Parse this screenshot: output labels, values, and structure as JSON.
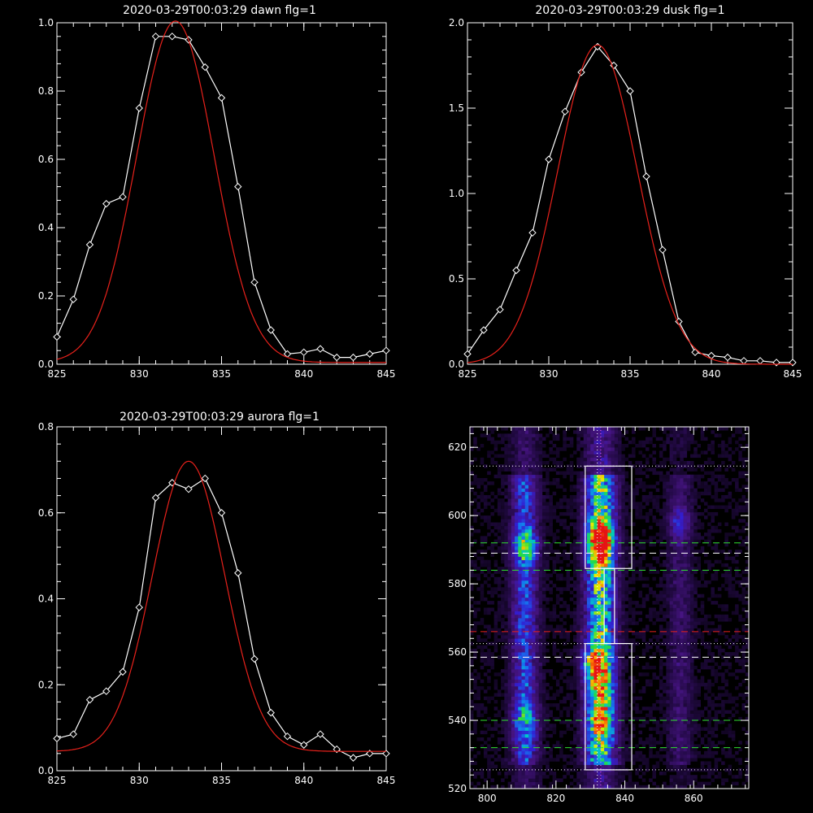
{
  "chart_data": [
    {
      "type": "line",
      "title": "2020-03-29T00:03:29 dawn flg=1",
      "xlim": [
        825,
        845
      ],
      "ylim": [
        0,
        1.0
      ],
      "xticks": [
        "825",
        "830",
        "835",
        "840",
        "845"
      ],
      "yticks": [
        "0.0",
        "0.2",
        "0.4",
        "0.6",
        "0.8",
        "1.0"
      ],
      "series": [
        {
          "color": "#ffffff",
          "marker": "diamond",
          "x": [
            825,
            826,
            827,
            828,
            829,
            830,
            831,
            832,
            833,
            834,
            835,
            836,
            837,
            838,
            839,
            840,
            841,
            842,
            843,
            844,
            845
          ],
          "y": [
            0.08,
            0.19,
            0.35,
            0.47,
            0.49,
            0.75,
            0.96,
            0.96,
            0.95,
            0.87,
            0.78,
            0.52,
            0.24,
            0.1,
            0.03,
            0.035,
            0.045,
            0.02,
            0.02,
            0.03,
            0.04
          ]
        },
        {
          "color": "#e8211b",
          "kind": "gaussian",
          "amp": 1.0,
          "mu": 832.2,
          "sigma": 2.35,
          "base": 0.005
        }
      ]
    },
    {
      "type": "line",
      "title": "2020-03-29T00:03:29 dusk flg=1",
      "xlim": [
        825,
        845
      ],
      "ylim": [
        0,
        2.0
      ],
      "xticks": [
        "825",
        "830",
        "835",
        "840",
        "845"
      ],
      "yticks": [
        "0.0",
        "0.5",
        "1.0",
        "1.5",
        "2.0"
      ],
      "series": [
        {
          "color": "#ffffff",
          "marker": "diamond",
          "x": [
            825,
            826,
            827,
            828,
            829,
            830,
            831,
            832,
            833,
            834,
            835,
            836,
            837,
            838,
            839,
            840,
            841,
            842,
            843,
            844,
            845
          ],
          "y": [
            0.06,
            0.2,
            0.32,
            0.55,
            0.77,
            1.2,
            1.48,
            1.71,
            1.86,
            1.75,
            1.6,
            1.1,
            0.67,
            0.25,
            0.07,
            0.05,
            0.04,
            0.02,
            0.02,
            0.01,
            0.01
          ]
        },
        {
          "color": "#e8211b",
          "kind": "gaussian",
          "amp": 1.87,
          "mu": 833.0,
          "sigma": 2.45,
          "base": 0.0
        }
      ]
    },
    {
      "type": "line",
      "title": "2020-03-29T00:03:29 aurora flg=1",
      "xlim": [
        825,
        845
      ],
      "ylim": [
        0,
        0.8
      ],
      "xticks": [
        "825",
        "830",
        "835",
        "840",
        "845"
      ],
      "yticks": [
        "0.0",
        "0.2",
        "0.4",
        "0.6",
        "0.8"
      ],
      "series": [
        {
          "color": "#ffffff",
          "marker": "diamond",
          "x": [
            825,
            826,
            827,
            828,
            829,
            830,
            831,
            832,
            833,
            834,
            835,
            836,
            837,
            838,
            839,
            840,
            841,
            842,
            843,
            844,
            845
          ],
          "y": [
            0.075,
            0.085,
            0.165,
            0.185,
            0.23,
            0.38,
            0.635,
            0.67,
            0.655,
            0.68,
            0.6,
            0.46,
            0.26,
            0.135,
            0.08,
            0.06,
            0.085,
            0.05,
            0.03,
            0.04,
            0.04
          ]
        },
        {
          "color": "#e8211b",
          "kind": "gaussian",
          "amp": 0.675,
          "mu": 833.0,
          "sigma": 2.2,
          "base": 0.045
        }
      ]
    },
    {
      "type": "heatmap",
      "title": "",
      "xlim": [
        795,
        876
      ],
      "ylim": [
        520,
        626
      ],
      "xticks": [
        "800",
        "820",
        "840",
        "860"
      ],
      "yticks": [
        "520",
        "540",
        "560",
        "580",
        "600",
        "620"
      ],
      "bins": {
        "nx": 81,
        "ny": 106
      },
      "emission_columns": [
        {
          "x": 811,
          "width": 2.6,
          "strength": 0.42
        },
        {
          "x": 833,
          "width": 3.0,
          "strength": 0.72
        },
        {
          "x": 856,
          "width": 2.4,
          "strength": 0.16
        }
      ],
      "hot_spots": [
        {
          "x": 833,
          "y": 590,
          "value": 1.0
        },
        {
          "x": 833,
          "y": 595,
          "value": 0.85
        },
        {
          "x": 811,
          "y": 591,
          "value": 0.8
        },
        {
          "x": 833,
          "y": 540,
          "value": 0.75
        },
        {
          "x": 833,
          "y": 550,
          "value": 0.6
        },
        {
          "x": 811,
          "y": 540,
          "value": 0.5
        },
        {
          "x": 856,
          "y": 598,
          "value": 0.35
        },
        {
          "x": 831,
          "y": 557,
          "value": 0.9
        }
      ],
      "boxes": [
        {
          "x": [
            828.5,
            842
          ],
          "y": [
            584.5,
            614.5
          ],
          "color": "#ffffff"
        },
        {
          "x": [
            828.5,
            842
          ],
          "y": [
            525.5,
            562.5
          ],
          "color": "#ffffff"
        },
        {
          "x": [
            834,
            837
          ],
          "y": [
            562.5,
            584.5
          ],
          "color": "#ffffff"
        }
      ],
      "hlines": [
        {
          "y": 614.5,
          "color": "#ffffff",
          "style": "dotted"
        },
        {
          "y": 562.5,
          "color": "#ffffff",
          "style": "dotted"
        },
        {
          "y": 525.5,
          "color": "#ffffff",
          "style": "dotted"
        },
        {
          "y": 592,
          "color": "#2fe02f",
          "style": "dashed"
        },
        {
          "y": 589,
          "color": "#ffffff",
          "style": "dashed"
        },
        {
          "y": 584,
          "color": "#2fe02f",
          "style": "dashed"
        },
        {
          "y": 566,
          "color": "#e8211b",
          "style": "dashed"
        },
        {
          "y": 558.5,
          "color": "#ffffff",
          "style": "dashed"
        },
        {
          "y": 540,
          "color": "#2fe02f",
          "style": "dashed"
        },
        {
          "y": 532,
          "color": "#2fe02f",
          "style": "dashed"
        }
      ],
      "vlines": [
        {
          "x": 832,
          "color": "#ffffff",
          "style": "dotted"
        },
        {
          "x": 833,
          "color": "#ff66ff",
          "style": "dotted"
        }
      ]
    }
  ]
}
